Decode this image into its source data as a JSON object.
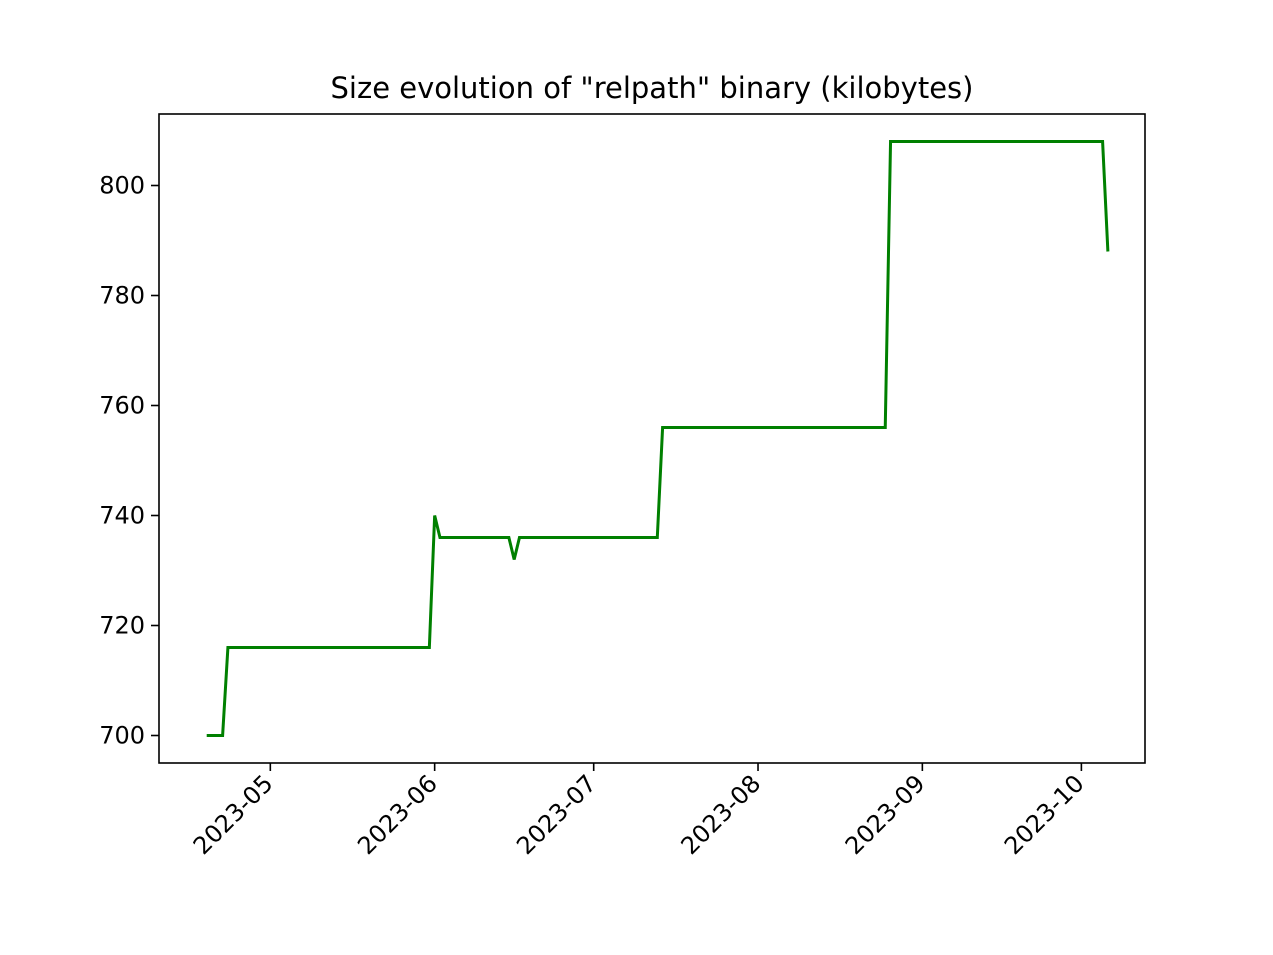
{
  "chart_data": {
    "type": "line",
    "title": "Size evolution of \"relpath\" binary (kilobytes)",
    "xlabel": "",
    "ylabel": "",
    "x_axis_type": "date",
    "xlim": [
      "2023-04-10",
      "2023-10-13"
    ],
    "ylim": [
      695,
      813
    ],
    "grid": false,
    "legend": "none",
    "x_ticks": [
      "2023-05",
      "2023-06",
      "2023-07",
      "2023-08",
      "2023-09",
      "2023-10"
    ],
    "x_tick_dates": [
      "2023-05-01",
      "2023-06-01",
      "2023-07-01",
      "2023-08-01",
      "2023-09-01",
      "2023-10-01"
    ],
    "y_ticks": [
      700,
      720,
      740,
      760,
      780,
      800
    ],
    "series": [
      {
        "color": "#008000",
        "x": [
          "2023-04-19",
          "2023-04-22",
          "2023-04-23",
          "2023-05-31",
          "2023-06-01",
          "2023-06-02",
          "2023-06-15",
          "2023-06-16",
          "2023-06-17",
          "2023-07-13",
          "2023-07-14",
          "2023-08-25",
          "2023-08-26",
          "2023-10-05",
          "2023-10-06"
        ],
        "y": [
          700,
          700,
          716,
          716,
          740,
          736,
          736,
          732,
          736,
          736,
          756,
          756,
          808,
          808,
          788
        ]
      }
    ]
  }
}
